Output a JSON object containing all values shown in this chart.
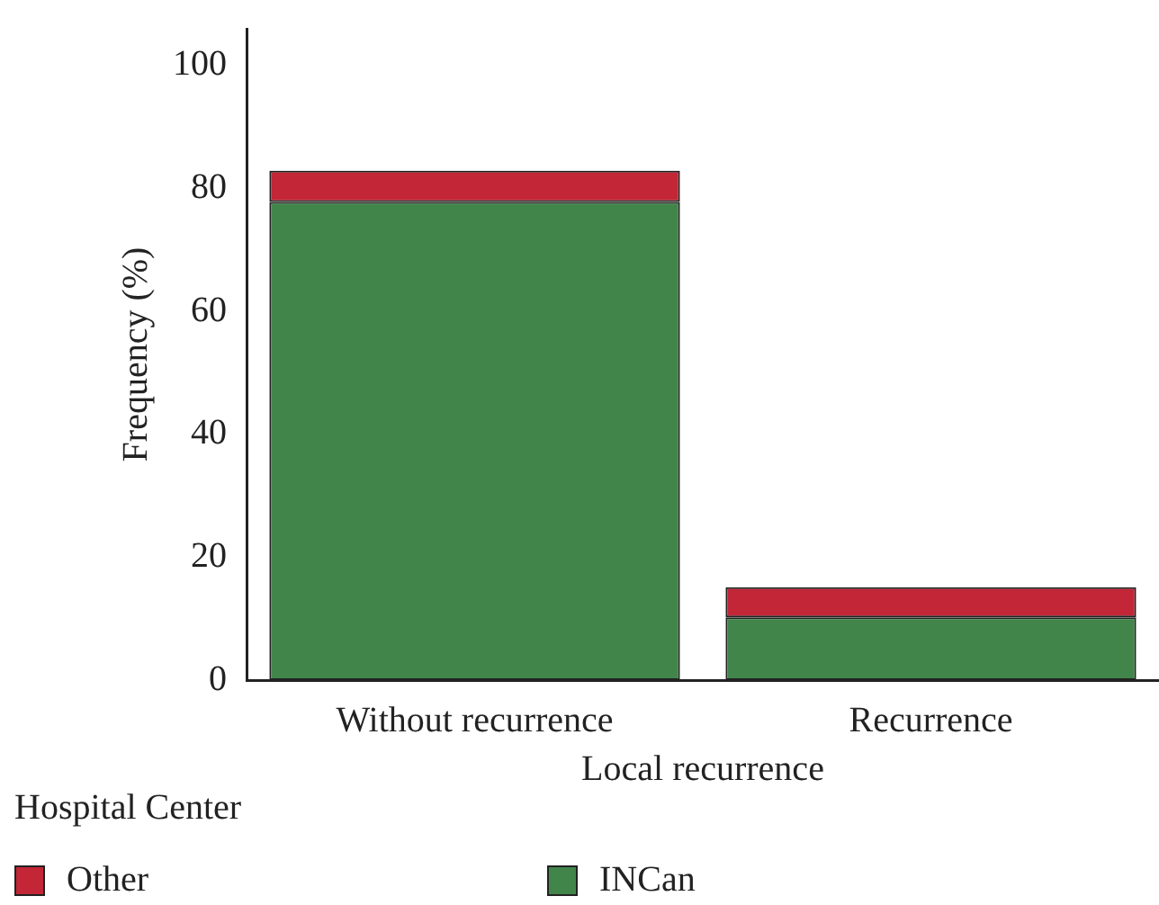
{
  "chart_data": {
    "type": "bar",
    "stacked": true,
    "xlabel": "Local recurrence",
    "ylabel": "Frequency (%)",
    "legend_title": "Hospital Center",
    "legend": "bottom left",
    "categories": [
      "Without recurrence",
      "Recurrence"
    ],
    "series": [
      {
        "name": "INCan",
        "color": "#41854a",
        "values": [
          77.8,
          10.2
        ]
      },
      {
        "name": "Other",
        "color": "#c22637",
        "values": [
          5.1,
          4.9
        ]
      }
    ],
    "ylim": [
      0,
      106
    ],
    "yticks": [
      0,
      20,
      40,
      60,
      80,
      100
    ],
    "grid": false
  }
}
